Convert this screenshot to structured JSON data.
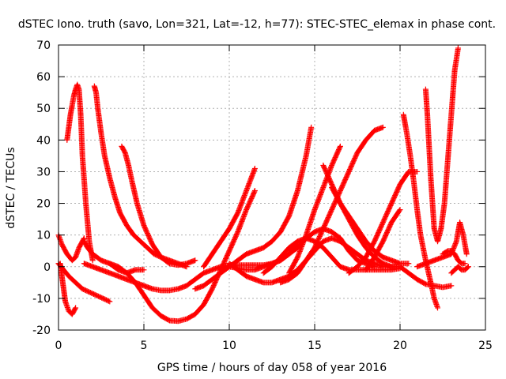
{
  "chart_data": {
    "type": "scatter",
    "title": "dSTEC Iono. truth (savo, Lon=321, Lat=-12, h=77): STEC-STEC_elemax in phase cont.",
    "xlabel": "GPS time / hours of day 058 of year 2016",
    "ylabel": "dSTEC  / TECUs",
    "xlim": [
      0,
      25
    ],
    "ylim": [
      -20,
      70
    ],
    "x_ticks": [
      0,
      5,
      10,
      15,
      20,
      25
    ],
    "y_ticks": [
      -20,
      -10,
      0,
      10,
      20,
      30,
      40,
      50,
      60,
      70
    ],
    "x_tick_labels": [
      "0",
      "5",
      "10",
      "15",
      "20",
      "25"
    ],
    "y_tick_labels": [
      "-20",
      "-10",
      "0",
      "10",
      "20",
      "30",
      "40",
      "50",
      "60",
      "70"
    ],
    "grid": true,
    "marker": "+",
    "color": "#ff0000",
    "series": [
      {
        "x": [
          0.0,
          0.2,
          0.5,
          0.8,
          1.0,
          1.2,
          1.5
        ],
        "y": [
          10,
          7,
          4,
          2,
          3,
          6,
          9
        ]
      },
      {
        "x": [
          0.1,
          0.2,
          0.3,
          0.4,
          0.6,
          0.8,
          1.0
        ],
        "y": [
          1,
          -3,
          -7,
          -11,
          -14,
          -15,
          -13
        ]
      },
      {
        "x": [
          0.5,
          0.6,
          0.7,
          0.8,
          0.9,
          1.0,
          1.1,
          1.2,
          1.3,
          1.4,
          1.6,
          1.8,
          2.0
        ],
        "y": [
          40,
          44,
          48,
          51,
          54,
          56,
          57.5,
          56,
          48,
          35,
          20,
          8,
          2
        ]
      },
      {
        "x": [
          0.0,
          0.3,
          0.6,
          1.0,
          1.4,
          1.8,
          2.2,
          2.6,
          3.0
        ],
        "y": [
          1,
          -1,
          -3,
          -5,
          -7,
          -8,
          -9,
          -10,
          -11
        ]
      },
      {
        "x": [
          2.1,
          2.2,
          2.3,
          2.5,
          2.7,
          3.0,
          3.3,
          3.6,
          4.0,
          4.4,
          4.8,
          5.2,
          5.6,
          6.0,
          6.5,
          7.0,
          7.5
        ],
        "y": [
          57,
          55,
          50,
          42,
          35,
          28,
          22,
          17,
          13,
          10,
          8,
          6,
          4,
          3,
          2,
          1,
          0
        ]
      },
      {
        "x": [
          3.7,
          3.9,
          4.1,
          4.3,
          4.6,
          5.0,
          5.5,
          6.0,
          6.5,
          7.0,
          7.5,
          8.0
        ],
        "y": [
          38,
          36,
          32,
          27,
          20,
          13,
          7,
          3,
          1,
          0.5,
          1,
          2
        ]
      },
      {
        "x": [
          1.5,
          1.7,
          2.0,
          2.5,
          3.0,
          3.5,
          4.0,
          4.5,
          5.0
        ],
        "y": [
          8,
          6,
          4,
          2,
          1,
          -1,
          -2,
          -1,
          -1
        ]
      },
      {
        "x": [
          1.5,
          2.0,
          2.5,
          3.0,
          3.5,
          4.0,
          4.5,
          5.0,
          5.5,
          6.0,
          6.5,
          7.0,
          7.5,
          8.0,
          8.5,
          9.0,
          9.5,
          10.0,
          10.5,
          11.0,
          11.5,
          12.0,
          12.5,
          13.0,
          13.5,
          14.0
        ],
        "y": [
          1,
          0,
          -1,
          -2,
          -3,
          -4,
          -5,
          -6,
          -7,
          -7.5,
          -7.5,
          -7,
          -6,
          -4,
          -2,
          -1,
          0,
          0.5,
          0.5,
          0.5,
          0.5,
          0.5,
          1,
          2,
          4,
          8
        ]
      },
      {
        "x": [
          3.0,
          3.5,
          4.0,
          4.5,
          5.0,
          5.5,
          6.0,
          6.5,
          7.0,
          7.5,
          8.0,
          8.5,
          9.0,
          9.5,
          10.0,
          10.5,
          11.0,
          11.5
        ],
        "y": [
          1,
          0,
          -2,
          -5,
          -9,
          -13,
          -15.5,
          -17,
          -17.2,
          -16.5,
          -15,
          -12,
          -7,
          -1,
          5,
          11,
          18,
          24
        ]
      },
      {
        "x": [
          8.0,
          8.5,
          9.0,
          9.5,
          10.0,
          10.5,
          11.0,
          11.5,
          12.0,
          12.5,
          13.0,
          13.5,
          14.0,
          14.5,
          14.8
        ],
        "y": [
          -7,
          -6,
          -4,
          -2,
          0,
          2,
          4,
          5,
          6,
          8,
          11,
          16,
          24,
          35,
          44
        ]
      },
      {
        "x": [
          8.5,
          9.0,
          9.5,
          10.0,
          10.5,
          11.0,
          11.5
        ],
        "y": [
          0,
          4,
          8,
          12,
          17,
          24,
          31
        ]
      },
      {
        "x": [
          9.5,
          10.0,
          10.5,
          11.0,
          11.5,
          12.0,
          12.5,
          13.0,
          13.5,
          14.0,
          14.5,
          15.0,
          15.5,
          16.0,
          16.5,
          17.0,
          17.5,
          18.0,
          18.5
        ],
        "y": [
          -1,
          0,
          -0.5,
          -1,
          -1,
          0,
          1,
          2,
          4,
          6,
          9,
          11,
          12,
          11,
          9,
          5,
          2,
          1,
          0
        ]
      },
      {
        "x": [
          10.0,
          10.5,
          11.0,
          11.5,
          12.0,
          12.5,
          13.0,
          13.5,
          14.0,
          14.5,
          15.0,
          15.5,
          16.0,
          16.5,
          17.0,
          17.5,
          18.0,
          18.5,
          19.0,
          19.5,
          20.0
        ],
        "y": [
          1,
          -1,
          -3,
          -4,
          -5,
          -5,
          -4,
          -3,
          -1,
          2,
          5,
          8,
          9,
          8,
          6,
          4,
          2,
          1,
          0,
          0,
          0
        ]
      },
      {
        "x": [
          12.0,
          12.5,
          13.0,
          13.5,
          14.0,
          14.5,
          15.0,
          15.5,
          16.0,
          16.5,
          17.0,
          17.5,
          18.0,
          18.5,
          19.0,
          19.5,
          20.0
        ],
        "y": [
          -2,
          0,
          3,
          6,
          8,
          9,
          8,
          6,
          3,
          0,
          -1,
          -1,
          -1,
          -1,
          -1,
          -1,
          -0.5
        ]
      },
      {
        "x": [
          13.0,
          13.5,
          14.0,
          14.5,
          15.0,
          15.5,
          16.0,
          16.5,
          17.0,
          17.5,
          18.0,
          18.5,
          19.0
        ],
        "y": [
          -5,
          -4,
          -2,
          2,
          6,
          12,
          18,
          24,
          30,
          36,
          40,
          43,
          44
        ]
      },
      {
        "x": [
          13.5,
          14.0,
          14.5,
          15.0,
          15.5,
          16.0,
          16.5
        ],
        "y": [
          -2,
          3,
          10,
          18,
          25,
          32,
          38
        ]
      },
      {
        "x": [
          15.5,
          16.0,
          16.5,
          17.0,
          17.5,
          18.0,
          18.5,
          19.0,
          19.5,
          20.0
        ],
        "y": [
          32,
          26,
          20,
          15,
          10,
          6,
          3,
          1,
          0,
          0
        ]
      },
      {
        "x": [
          16.0,
          16.5,
          17.0,
          17.5,
          18.0,
          18.5,
          19.0,
          19.5,
          20.0,
          20.5
        ],
        "y": [
          25,
          20,
          16,
          12,
          8,
          5,
          3,
          2,
          1,
          1
        ]
      },
      {
        "x": [
          17.0,
          17.5,
          18.0,
          18.5,
          19.0,
          19.5,
          20.0,
          20.5,
          21.0
        ],
        "y": [
          -2,
          0,
          3,
          8,
          14,
          20,
          26,
          30,
          30
        ]
      },
      {
        "x": [
          18.0,
          18.5,
          19.0,
          19.5,
          20.0
        ],
        "y": [
          -1,
          3,
          8,
          14,
          18
        ]
      },
      {
        "x": [
          20.2,
          20.4,
          20.6,
          20.8,
          21.0,
          21.2,
          21.5,
          21.8,
          22.0,
          22.2
        ],
        "y": [
          48,
          42,
          35,
          27,
          18,
          10,
          2,
          -5,
          -10,
          -13
        ]
      },
      {
        "x": [
          21.5,
          21.6,
          21.7,
          21.8,
          21.9,
          22.0,
          22.2,
          22.4,
          22.6,
          22.8,
          23.0,
          23.2,
          23.4
        ],
        "y": [
          56,
          48,
          38,
          28,
          20,
          12,
          8,
          12,
          20,
          34,
          48,
          62,
          69
        ]
      },
      {
        "x": [
          20.0,
          20.5,
          21.0,
          21.5,
          22.0,
          22.5,
          23.0
        ],
        "y": [
          0,
          -2,
          -4,
          -5.5,
          -6,
          -6.5,
          -6
        ]
      },
      {
        "x": [
          21.0,
          21.5,
          22.0,
          22.5,
          23.0,
          23.3,
          23.5,
          23.7,
          23.9
        ],
        "y": [
          0,
          1,
          2,
          3,
          4,
          8,
          14,
          10,
          4
        ]
      },
      {
        "x": [
          22.5,
          22.8,
          23.0,
          23.2,
          23.4,
          23.6,
          23.8
        ],
        "y": [
          4,
          5,
          5,
          4,
          2,
          1,
          1
        ]
      },
      {
        "x": [
          23.0,
          23.2,
          23.4,
          23.6,
          23.8,
          24.0
        ],
        "y": [
          -2,
          -1,
          0,
          -1,
          -1,
          0
        ]
      }
    ]
  }
}
